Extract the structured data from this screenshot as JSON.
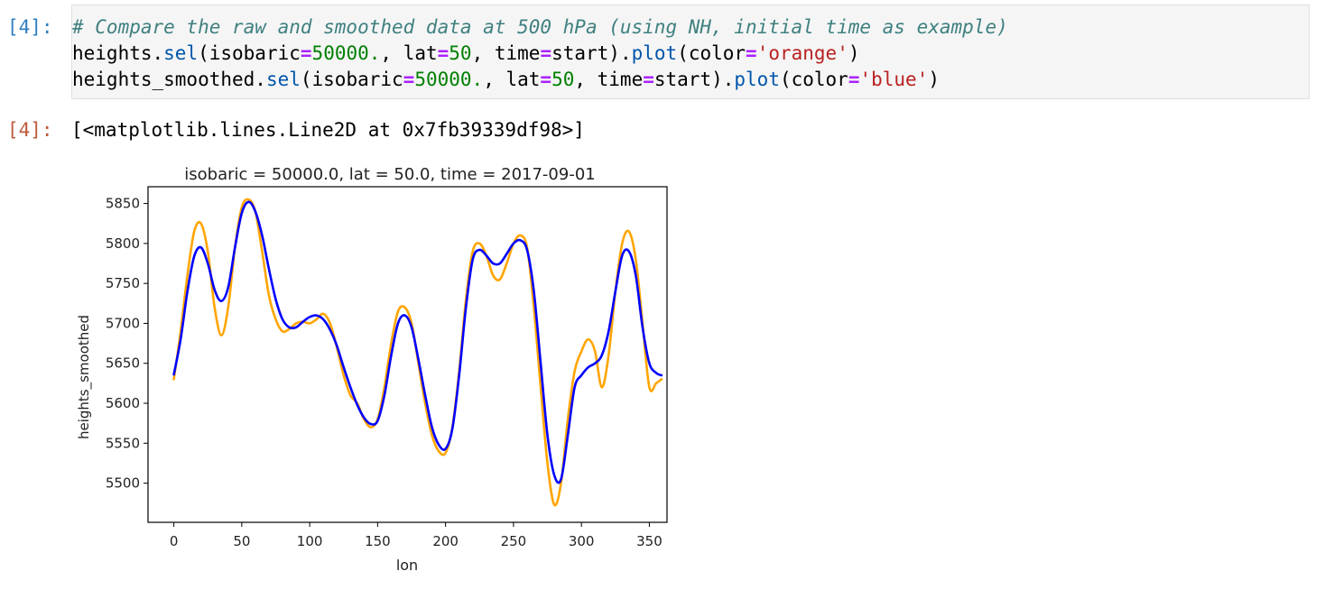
{
  "cell": {
    "input_prompt": "[4]:",
    "output_prompt": "[4]:",
    "code_lines": [
      [
        {
          "t": "# Compare the raw and smoothed data at 500 hPa (using NH, initial time as example)",
          "c": "c-comment"
        }
      ],
      [
        {
          "t": "heights."
        },
        {
          "t": "sel",
          "c": "c-method"
        },
        {
          "t": "(isobaric"
        },
        {
          "t": "=",
          "c": "c-op"
        },
        {
          "t": "50000.",
          "c": "c-num"
        },
        {
          "t": ", lat"
        },
        {
          "t": "=",
          "c": "c-op"
        },
        {
          "t": "50",
          "c": "c-num"
        },
        {
          "t": ", time"
        },
        {
          "t": "=",
          "c": "c-op"
        },
        {
          "t": "start)."
        },
        {
          "t": "plot",
          "c": "c-method"
        },
        {
          "t": "(color"
        },
        {
          "t": "=",
          "c": "c-op"
        },
        {
          "t": "'orange'",
          "c": "c-str"
        },
        {
          "t": ")"
        }
      ],
      [
        {
          "t": "heights_smoothed."
        },
        {
          "t": "sel",
          "c": "c-method"
        },
        {
          "t": "(isobaric"
        },
        {
          "t": "=",
          "c": "c-op"
        },
        {
          "t": "50000.",
          "c": "c-num"
        },
        {
          "t": ", lat"
        },
        {
          "t": "=",
          "c": "c-op"
        },
        {
          "t": "50",
          "c": "c-num"
        },
        {
          "t": ", time"
        },
        {
          "t": "=",
          "c": "c-op"
        },
        {
          "t": "start)."
        },
        {
          "t": "plot",
          "c": "c-method"
        },
        {
          "t": "(color"
        },
        {
          "t": "=",
          "c": "c-op"
        },
        {
          "t": "'blue'",
          "c": "c-str"
        },
        {
          "t": ")"
        }
      ]
    ],
    "output_text": "[<matplotlib.lines.Line2D at 0x7fb39339df98>]"
  },
  "chart_data": {
    "type": "line",
    "title": "isobaric = 50000.0, lat = 50.0, time = 2017-09-01",
    "xlabel": "lon",
    "ylabel": "heights_smoothed",
    "xlim": [
      -19,
      363
    ],
    "ylim": [
      5451,
      5871
    ],
    "xticks": [
      0,
      50,
      100,
      150,
      200,
      250,
      300,
      350
    ],
    "yticks": [
      5500,
      5550,
      5600,
      5650,
      5700,
      5750,
      5800,
      5850
    ],
    "grid": false,
    "series": [
      {
        "color": "#ffa500",
        "x": [
          0,
          5,
          10,
          15,
          20,
          25,
          30,
          35,
          40,
          45,
          50,
          55,
          60,
          65,
          70,
          75,
          80,
          85,
          90,
          95,
          100,
          105,
          110,
          115,
          120,
          125,
          130,
          135,
          140,
          145,
          150,
          155,
          160,
          165,
          170,
          175,
          180,
          185,
          190,
          195,
          200,
          205,
          210,
          215,
          220,
          225,
          230,
          235,
          240,
          245,
          250,
          255,
          260,
          265,
          270,
          275,
          280,
          285,
          290,
          295,
          300,
          305,
          310,
          315,
          320,
          325,
          330,
          335,
          340,
          345,
          350,
          355,
          359
        ],
        "values": [
          5630,
          5690,
          5760,
          5815,
          5825,
          5790,
          5720,
          5685,
          5720,
          5795,
          5845,
          5855,
          5840,
          5790,
          5735,
          5705,
          5690,
          5693,
          5700,
          5702,
          5700,
          5705,
          5712,
          5700,
          5670,
          5635,
          5610,
          5600,
          5580,
          5570,
          5580,
          5620,
          5675,
          5715,
          5720,
          5700,
          5650,
          5600,
          5560,
          5540,
          5538,
          5570,
          5640,
          5730,
          5790,
          5800,
          5785,
          5760,
          5755,
          5775,
          5800,
          5810,
          5795,
          5720,
          5620,
          5525,
          5473,
          5500,
          5580,
          5640,
          5665,
          5680,
          5665,
          5620,
          5660,
          5740,
          5800,
          5815,
          5780,
          5700,
          5620,
          5625,
          5630
        ]
      },
      {
        "color": "#0000ff",
        "x": [
          0,
          5,
          10,
          15,
          20,
          25,
          30,
          35,
          40,
          45,
          50,
          55,
          60,
          65,
          70,
          75,
          80,
          85,
          90,
          95,
          100,
          105,
          110,
          115,
          120,
          125,
          130,
          135,
          140,
          145,
          150,
          155,
          160,
          165,
          170,
          175,
          180,
          185,
          190,
          195,
          200,
          205,
          210,
          215,
          220,
          225,
          230,
          235,
          240,
          245,
          250,
          255,
          260,
          265,
          270,
          275,
          280,
          285,
          290,
          295,
          300,
          305,
          310,
          315,
          320,
          325,
          330,
          335,
          340,
          345,
          350,
          355,
          359
        ],
        "values": [
          5636,
          5680,
          5740,
          5784,
          5795,
          5775,
          5742,
          5728,
          5745,
          5795,
          5838,
          5852,
          5840,
          5810,
          5768,
          5730,
          5705,
          5695,
          5695,
          5702,
          5708,
          5710,
          5705,
          5692,
          5672,
          5645,
          5620,
          5598,
          5582,
          5574,
          5578,
          5610,
          5660,
          5700,
          5710,
          5695,
          5655,
          5610,
          5570,
          5548,
          5543,
          5568,
          5635,
          5720,
          5780,
          5792,
          5785,
          5775,
          5775,
          5787,
          5800,
          5804,
          5792,
          5740,
          5650,
          5560,
          5510,
          5505,
          5560,
          5620,
          5635,
          5645,
          5650,
          5660,
          5690,
          5740,
          5785,
          5790,
          5760,
          5695,
          5650,
          5638,
          5635
        ]
      }
    ]
  }
}
